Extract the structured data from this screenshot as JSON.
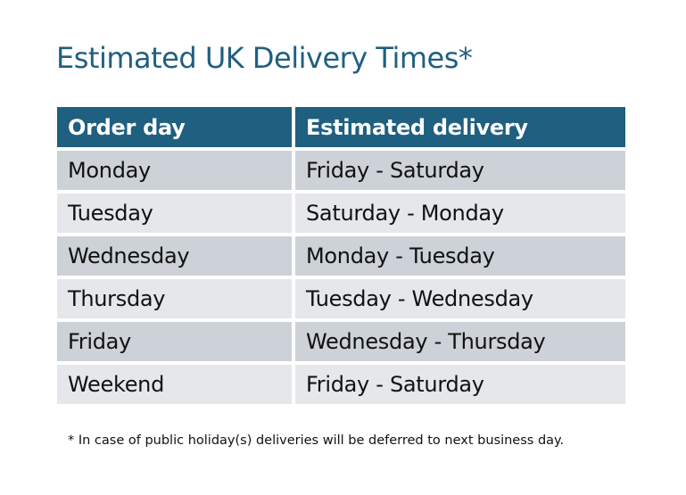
{
  "title": "Estimated UK Delivery Times*",
  "table": {
    "headers": [
      "Order day",
      "Estimated delivery"
    ],
    "rows": [
      [
        "Monday",
        "Friday - Saturday"
      ],
      [
        "Tuesday",
        "Saturday - Monday"
      ],
      [
        "Wednesday",
        "Monday - Tuesday"
      ],
      [
        "Thursday",
        "Tuesday - Wednesday"
      ],
      [
        "Friday",
        "Wednesday - Thursday"
      ],
      [
        "Weekend",
        "Friday - Saturday"
      ]
    ]
  },
  "footnote": "* In case of public holiday(s) deliveries will be deferred to next business day.",
  "colors": {
    "header": "#1f5f80",
    "row_dark": "#cdd1d8",
    "row_light": "#e5e7ea"
  }
}
